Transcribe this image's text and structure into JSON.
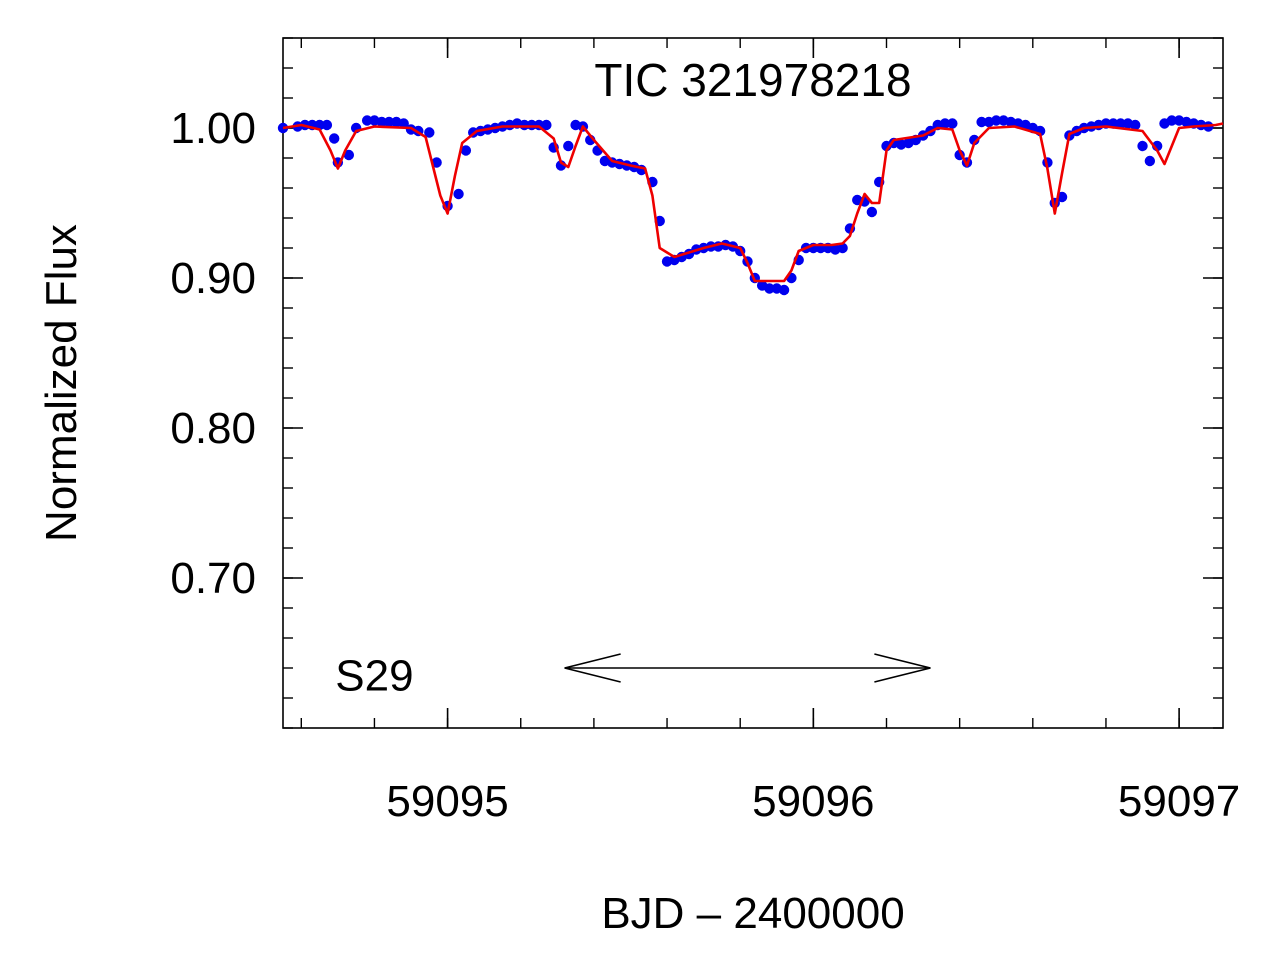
{
  "chart_data": {
    "type": "scatter",
    "title": "TIC 321978218",
    "xlabel": "BJD – 2400000",
    "ylabel": "Normalized Flux",
    "xlim": [
      59094.55,
      59097.12
    ],
    "ylim": [
      0.6,
      1.06
    ],
    "x_ticks": [
      59095,
      59096,
      59097
    ],
    "x_tick_labels": [
      "59095",
      "59096",
      "59097"
    ],
    "y_ticks": [
      0.7,
      0.8,
      0.9,
      1.0
    ],
    "y_tick_labels": [
      "0.70",
      "0.80",
      "0.90",
      "1.00"
    ],
    "x_minor_step": 0.2,
    "y_minor_step": 0.02,
    "grid": false,
    "annotation": {
      "label": "S29",
      "label_x": 59094.8,
      "label_y": 0.637,
      "arrow_from": 59095.32,
      "arrow_to": 59096.32,
      "arrow_y": 0.64
    },
    "colors": {
      "data": "#0000ee",
      "model": "#ee0000",
      "axes": "#000000"
    },
    "series": [
      {
        "kind": "points",
        "x": [
          59094.55,
          59094.59,
          59094.61,
          59094.63,
          59094.65,
          59094.67,
          59094.69,
          59094.7,
          59094.73,
          59094.75,
          59094.78,
          59094.8,
          59094.82,
          59094.84,
          59094.86,
          59094.88,
          59094.9,
          59094.92,
          59094.95,
          59094.97,
          59095.0,
          59095.03,
          59095.05,
          59095.07,
          59095.09,
          59095.11,
          59095.13,
          59095.15,
          59095.17,
          59095.19,
          59095.21,
          59095.23,
          59095.25,
          59095.27,
          59095.29,
          59095.31,
          59095.33,
          59095.35,
          59095.37,
          59095.39,
          59095.41,
          59095.43,
          59095.45,
          59095.47,
          59095.49,
          59095.51,
          59095.53,
          59095.56,
          59095.58,
          59095.6,
          59095.62,
          59095.64,
          59095.66,
          59095.68,
          59095.7,
          59095.72,
          59095.74,
          59095.76,
          59095.78,
          59095.8,
          59095.82,
          59095.84,
          59095.86,
          59095.88,
          59095.9,
          59095.92,
          59095.94,
          59095.96,
          59095.98,
          59096.0,
          59096.02,
          59096.04,
          59096.06,
          59096.08,
          59096.1,
          59096.12,
          59096.14,
          59096.16,
          59096.18,
          59096.2,
          59096.22,
          59096.24,
          59096.26,
          59096.28,
          59096.3,
          59096.32,
          59096.34,
          59096.36,
          59096.38,
          59096.4,
          59096.42,
          59096.44,
          59096.46,
          59096.48,
          59096.5,
          59096.52,
          59096.54,
          59096.56,
          59096.58,
          59096.6,
          59096.62,
          59096.64,
          59096.66,
          59096.68,
          59096.7,
          59096.72,
          59096.74,
          59096.76,
          59096.78,
          59096.8,
          59096.82,
          59096.84,
          59096.86,
          59096.88,
          59096.9,
          59096.92,
          59096.94,
          59096.96,
          59096.98,
          59097.0,
          59097.02,
          59097.04,
          59097.06,
          59097.08
        ],
        "y": [
          1.0,
          1.001,
          1.002,
          1.002,
          1.002,
          1.002,
          0.993,
          0.977,
          0.982,
          1.0,
          1.005,
          1.005,
          1.004,
          1.004,
          1.004,
          1.003,
          0.999,
          0.998,
          0.997,
          0.977,
          0.948,
          0.956,
          0.985,
          0.997,
          0.998,
          0.999,
          1.0,
          1.001,
          1.002,
          1.003,
          1.002,
          1.002,
          1.002,
          1.002,
          0.987,
          0.975,
          0.988,
          1.002,
          1.001,
          0.992,
          0.985,
          0.978,
          0.977,
          0.976,
          0.975,
          0.974,
          0.972,
          0.964,
          0.938,
          0.911,
          0.912,
          0.914,
          0.916,
          0.919,
          0.92,
          0.921,
          0.921,
          0.922,
          0.921,
          0.918,
          0.911,
          0.9,
          0.895,
          0.893,
          0.893,
          0.892,
          0.9,
          0.912,
          0.92,
          0.92,
          0.92,
          0.92,
          0.919,
          0.92,
          0.933,
          0.952,
          0.951,
          0.944,
          0.964,
          0.988,
          0.99,
          0.989,
          0.99,
          0.992,
          0.995,
          0.998,
          1.002,
          1.003,
          1.003,
          0.982,
          0.977,
          0.992,
          1.004,
          1.004,
          1.005,
          1.005,
          1.004,
          1.003,
          1.002,
          1.0,
          0.998,
          0.977,
          0.95,
          0.954,
          0.995,
          0.998,
          1.0,
          1.001,
          1.002,
          1.003,
          1.003,
          1.003,
          1.003,
          1.002,
          0.988,
          0.978,
          0.988,
          1.003,
          1.005,
          1.005,
          1.004,
          1.003,
          1.002,
          1.001
        ]
      },
      {
        "kind": "model",
        "x": [
          59094.55,
          59094.6,
          59094.65,
          59094.68,
          59094.7,
          59094.72,
          59094.75,
          59094.8,
          59094.9,
          59094.94,
          59094.98,
          59095.0,
          59095.02,
          59095.04,
          59095.08,
          59095.15,
          59095.25,
          59095.29,
          59095.31,
          59095.33,
          59095.35,
          59095.37,
          59095.4,
          59095.45,
          59095.5,
          59095.52,
          59095.54,
          59095.56,
          59095.58,
          59095.62,
          59095.7,
          59095.75,
          59095.8,
          59095.82,
          59095.84,
          59095.88,
          59095.92,
          59095.94,
          59095.96,
          59096.0,
          59096.05,
          59096.08,
          59096.1,
          59096.12,
          59096.14,
          59096.16,
          59096.18,
          59096.2,
          59096.22,
          59096.3,
          59096.34,
          59096.38,
          59096.4,
          59096.42,
          59096.44,
          59096.48,
          59096.55,
          59096.62,
          59096.64,
          59096.66,
          59096.68,
          59096.7,
          59096.74,
          59096.8,
          59096.9,
          59096.94,
          59096.96,
          59096.98,
          59097.0,
          59097.04,
          59097.1,
          59097.12
        ],
        "y": [
          1.0,
          1.002,
          0.999,
          0.985,
          0.973,
          0.985,
          0.998,
          1.001,
          1.0,
          0.994,
          0.955,
          0.943,
          0.968,
          0.99,
          0.998,
          1.001,
          1.001,
          0.993,
          0.977,
          0.974,
          0.988,
          1.001,
          0.992,
          0.978,
          0.975,
          0.974,
          0.973,
          0.955,
          0.92,
          0.914,
          0.92,
          0.923,
          0.92,
          0.91,
          0.898,
          0.898,
          0.898,
          0.905,
          0.918,
          0.922,
          0.922,
          0.923,
          0.928,
          0.943,
          0.956,
          0.95,
          0.95,
          0.985,
          0.992,
          0.995,
          1.0,
          0.999,
          0.985,
          0.975,
          0.99,
          1.0,
          1.001,
          0.996,
          0.973,
          0.943,
          0.97,
          0.996,
          1.0,
          1.001,
          0.998,
          0.985,
          0.976,
          0.988,
          1.0,
          1.001,
          1.002,
          1.003
        ]
      }
    ]
  }
}
